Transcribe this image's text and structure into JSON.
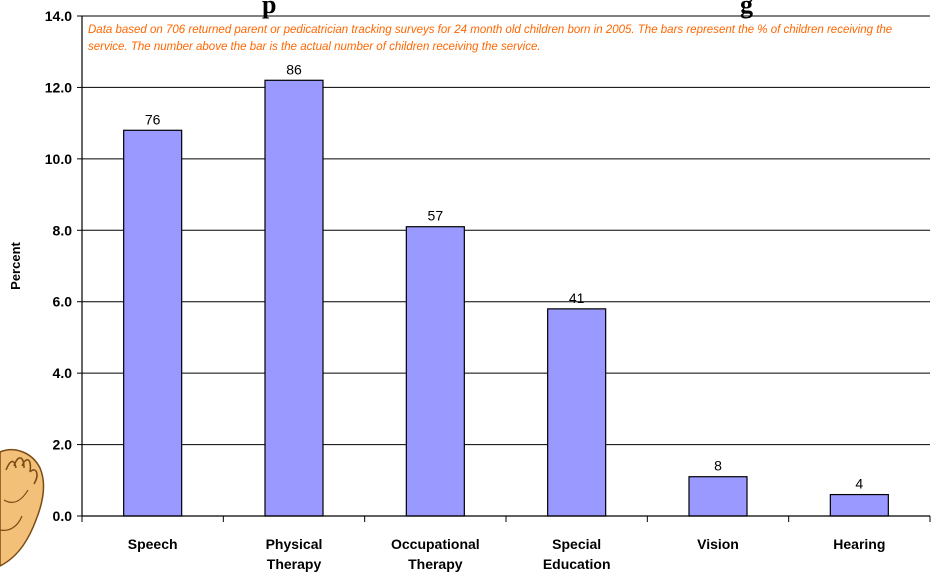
{
  "chart_data": {
    "type": "bar",
    "title": "…p… …g…",
    "ylabel": "Percent",
    "xlabel": "",
    "ylim": [
      0,
      14
    ],
    "yticks": [
      "0.0",
      "2.0",
      "4.0",
      "6.0",
      "8.0",
      "10.0",
      "12.0",
      "14.0"
    ],
    "categories": [
      [
        "Speech"
      ],
      [
        "Physical",
        "Therapy"
      ],
      [
        "Occupational",
        "Therapy"
      ],
      [
        "Special",
        "Education"
      ],
      [
        "Vision"
      ],
      [
        "Hearing"
      ]
    ],
    "values": [
      10.8,
      12.2,
      8.1,
      5.8,
      1.1,
      0.6
    ],
    "data_labels": [
      "76",
      "86",
      "57",
      "41",
      "8",
      "4"
    ],
    "annotation": "Data based on 706 returned parent or pedicatrician tracking surveys for 24 month old children born in 2005.  The bars represent the % of children receiving the service.  The number above the bar is the actual number of children receiving the service.",
    "grid": true,
    "colors": {
      "bar_fill": "#9999ff",
      "bar_stroke": "#000000",
      "annotation": "#ff6600",
      "gridline": "#000000"
    }
  }
}
